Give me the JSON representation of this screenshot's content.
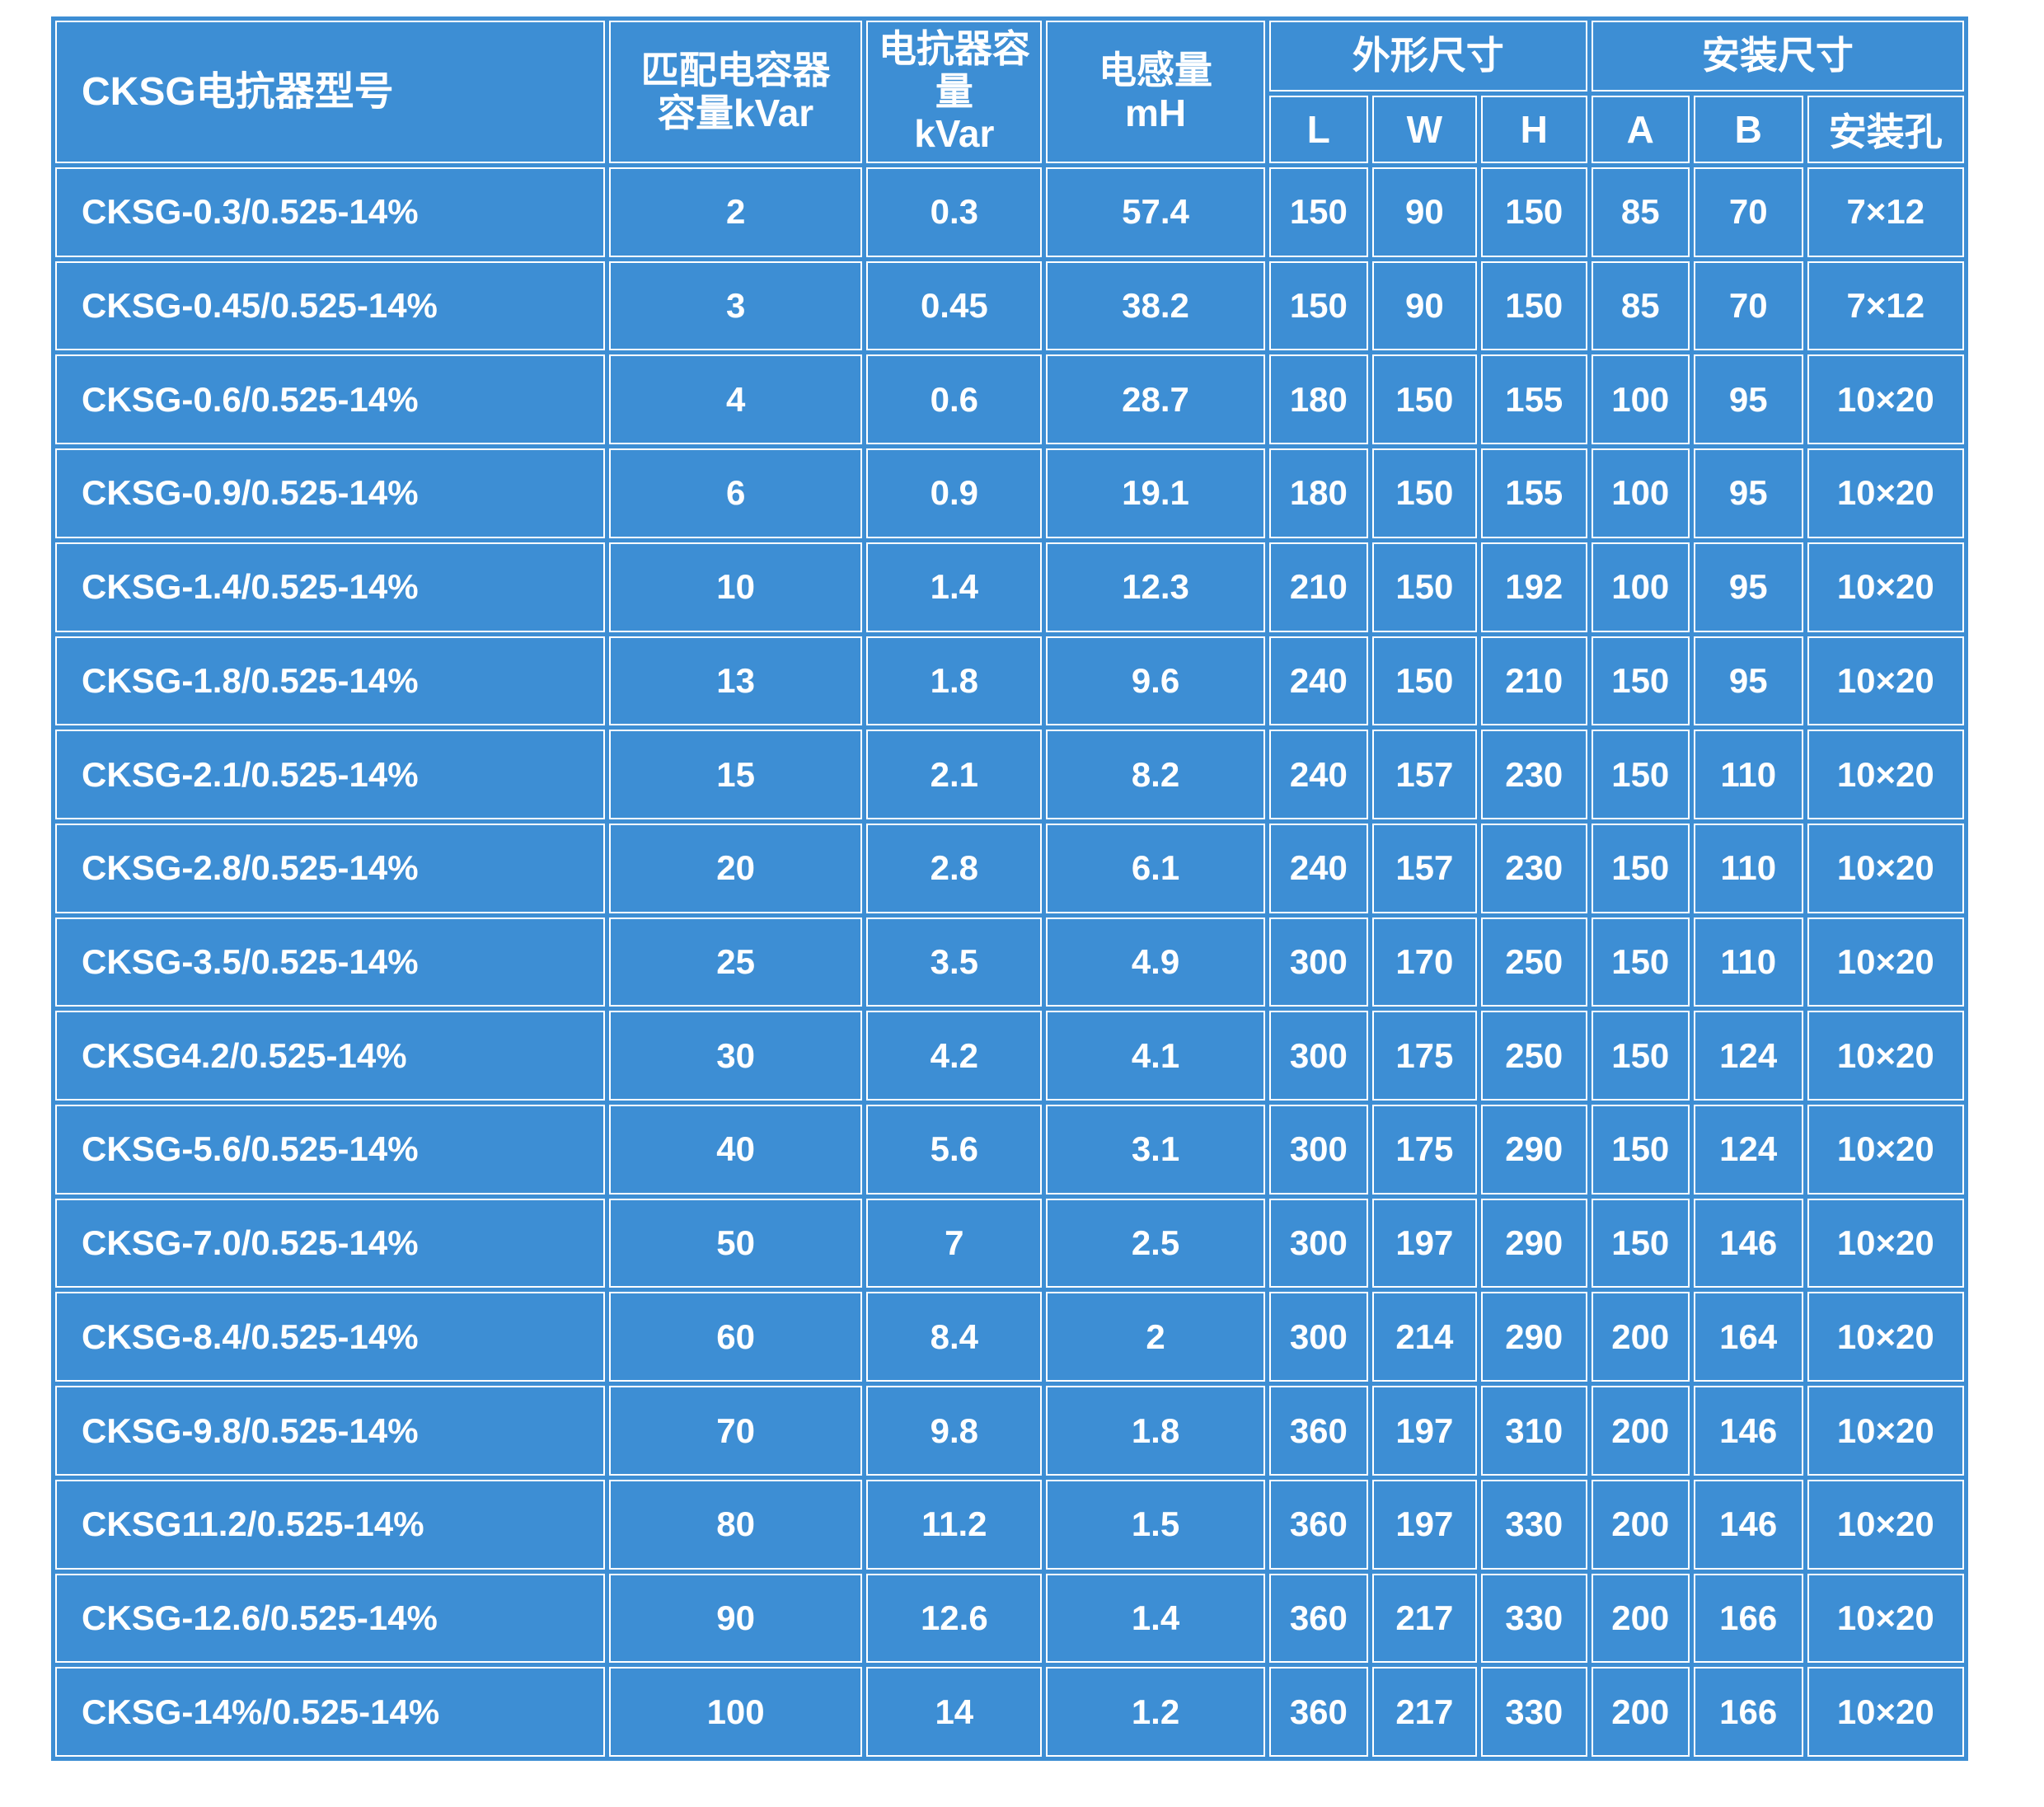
{
  "page": {
    "background": "#FFFFFF"
  },
  "table": {
    "colors": {
      "cell_blue": "#3D8ED4",
      "grid_line": "#FFFFFF",
      "text": "#FFFFFF"
    },
    "headers": {
      "model": "CKSG电抗器型号",
      "capacitor_line1": "匹配电容器",
      "capacitor_line2": "容量kVar",
      "reactor_line1": "电抗器容量",
      "reactor_line2": "kVar",
      "inductance_line1": "电感量",
      "inductance_line2": "mH",
      "outline_group": "外形尺寸",
      "mounting_group": "安装尺寸",
      "sub_L": "L",
      "sub_W": "W",
      "sub_H": "H",
      "sub_A": "A",
      "sub_B": "B",
      "sub_hole": "安装孔"
    },
    "rows": [
      [
        "CKSG-0.3/0.525-14%",
        "2",
        "0.3",
        "57.4",
        "150",
        "90",
        "150",
        "85",
        "70",
        "7×12"
      ],
      [
        "CKSG-0.45/0.525-14%",
        "3",
        "0.45",
        "38.2",
        "150",
        "90",
        "150",
        "85",
        "70",
        "7×12"
      ],
      [
        "CKSG-0.6/0.525-14%",
        "4",
        "0.6",
        "28.7",
        "180",
        "150",
        "155",
        "100",
        "95",
        "10×20"
      ],
      [
        "CKSG-0.9/0.525-14%",
        "6",
        "0.9",
        "19.1",
        "180",
        "150",
        "155",
        "100",
        "95",
        "10×20"
      ],
      [
        "CKSG-1.4/0.525-14%",
        "10",
        "1.4",
        "12.3",
        "210",
        "150",
        "192",
        "100",
        "95",
        "10×20"
      ],
      [
        "CKSG-1.8/0.525-14%",
        "13",
        "1.8",
        "9.6",
        "240",
        "150",
        "210",
        "150",
        "95",
        "10×20"
      ],
      [
        "CKSG-2.1/0.525-14%",
        "15",
        "2.1",
        "8.2",
        "240",
        "157",
        "230",
        "150",
        "110",
        "10×20"
      ],
      [
        "CKSG-2.8/0.525-14%",
        "20",
        "2.8",
        "6.1",
        "240",
        "157",
        "230",
        "150",
        "110",
        "10×20"
      ],
      [
        "CKSG-3.5/0.525-14%",
        "25",
        "3.5",
        "4.9",
        "300",
        "170",
        "250",
        "150",
        "110",
        "10×20"
      ],
      [
        "CKSG4.2/0.525-14%",
        "30",
        "4.2",
        "4.1",
        "300",
        "175",
        "250",
        "150",
        "124",
        "10×20"
      ],
      [
        "CKSG-5.6/0.525-14%",
        "40",
        "5.6",
        "3.1",
        "300",
        "175",
        "290",
        "150",
        "124",
        "10×20"
      ],
      [
        "CKSG-7.0/0.525-14%",
        "50",
        "7",
        "2.5",
        "300",
        "197",
        "290",
        "150",
        "146",
        "10×20"
      ],
      [
        "CKSG-8.4/0.525-14%",
        "60",
        "8.4",
        "2",
        "300",
        "214",
        "290",
        "200",
        "164",
        "10×20"
      ],
      [
        "CKSG-9.8/0.525-14%",
        "70",
        "9.8",
        "1.8",
        "360",
        "197",
        "310",
        "200",
        "146",
        "10×20"
      ],
      [
        "CKSG11.2/0.525-14%",
        "80",
        "11.2",
        "1.5",
        "360",
        "197",
        "330",
        "200",
        "146",
        "10×20"
      ],
      [
        "CKSG-12.6/0.525-14%",
        "90",
        "12.6",
        "1.4",
        "360",
        "217",
        "330",
        "200",
        "166",
        "10×20"
      ],
      [
        "CKSG-14%/0.525-14%",
        "100",
        "14",
        "1.2",
        "360",
        "217",
        "330",
        "200",
        "166",
        "10×20"
      ]
    ]
  }
}
